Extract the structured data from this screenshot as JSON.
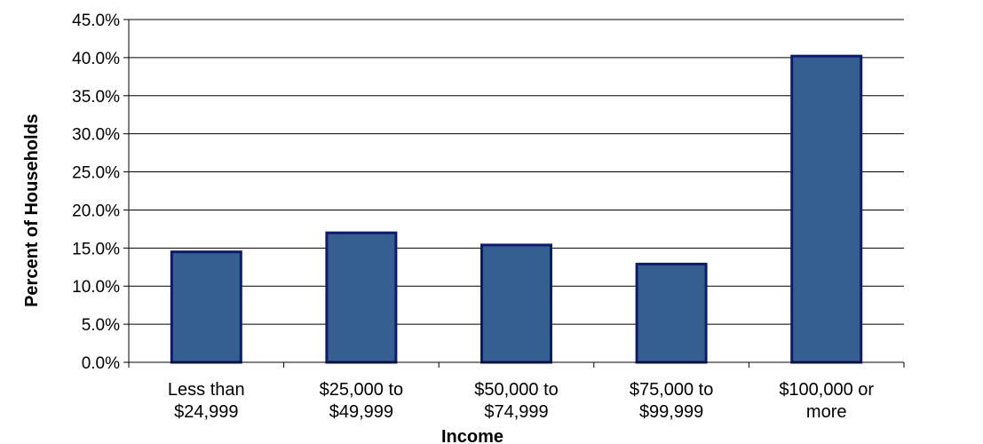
{
  "chart_data": {
    "type": "bar",
    "title": "",
    "xlabel": "Income",
    "ylabel": "Percent of Households",
    "categories": [
      [
        "Less than",
        "$24,999"
      ],
      [
        "$25,000 to",
        "$49,999"
      ],
      [
        "$50,000 to",
        "$74,999"
      ],
      [
        "$75,000 to",
        "$99,999"
      ],
      [
        "$100,000 or",
        "more"
      ]
    ],
    "values": [
      14.5,
      17.0,
      15.4,
      12.9,
      40.2
    ],
    "ylim": [
      0,
      45
    ],
    "yticks": [
      "0.0%",
      "5.0%",
      "10.0%",
      "15.0%",
      "20.0%",
      "25.0%",
      "30.0%",
      "35.0%",
      "40.0%",
      "45.0%"
    ],
    "grid": true,
    "colors": {
      "bar_fill": "#365f91",
      "bar_stroke": "#0d1b6e"
    }
  }
}
